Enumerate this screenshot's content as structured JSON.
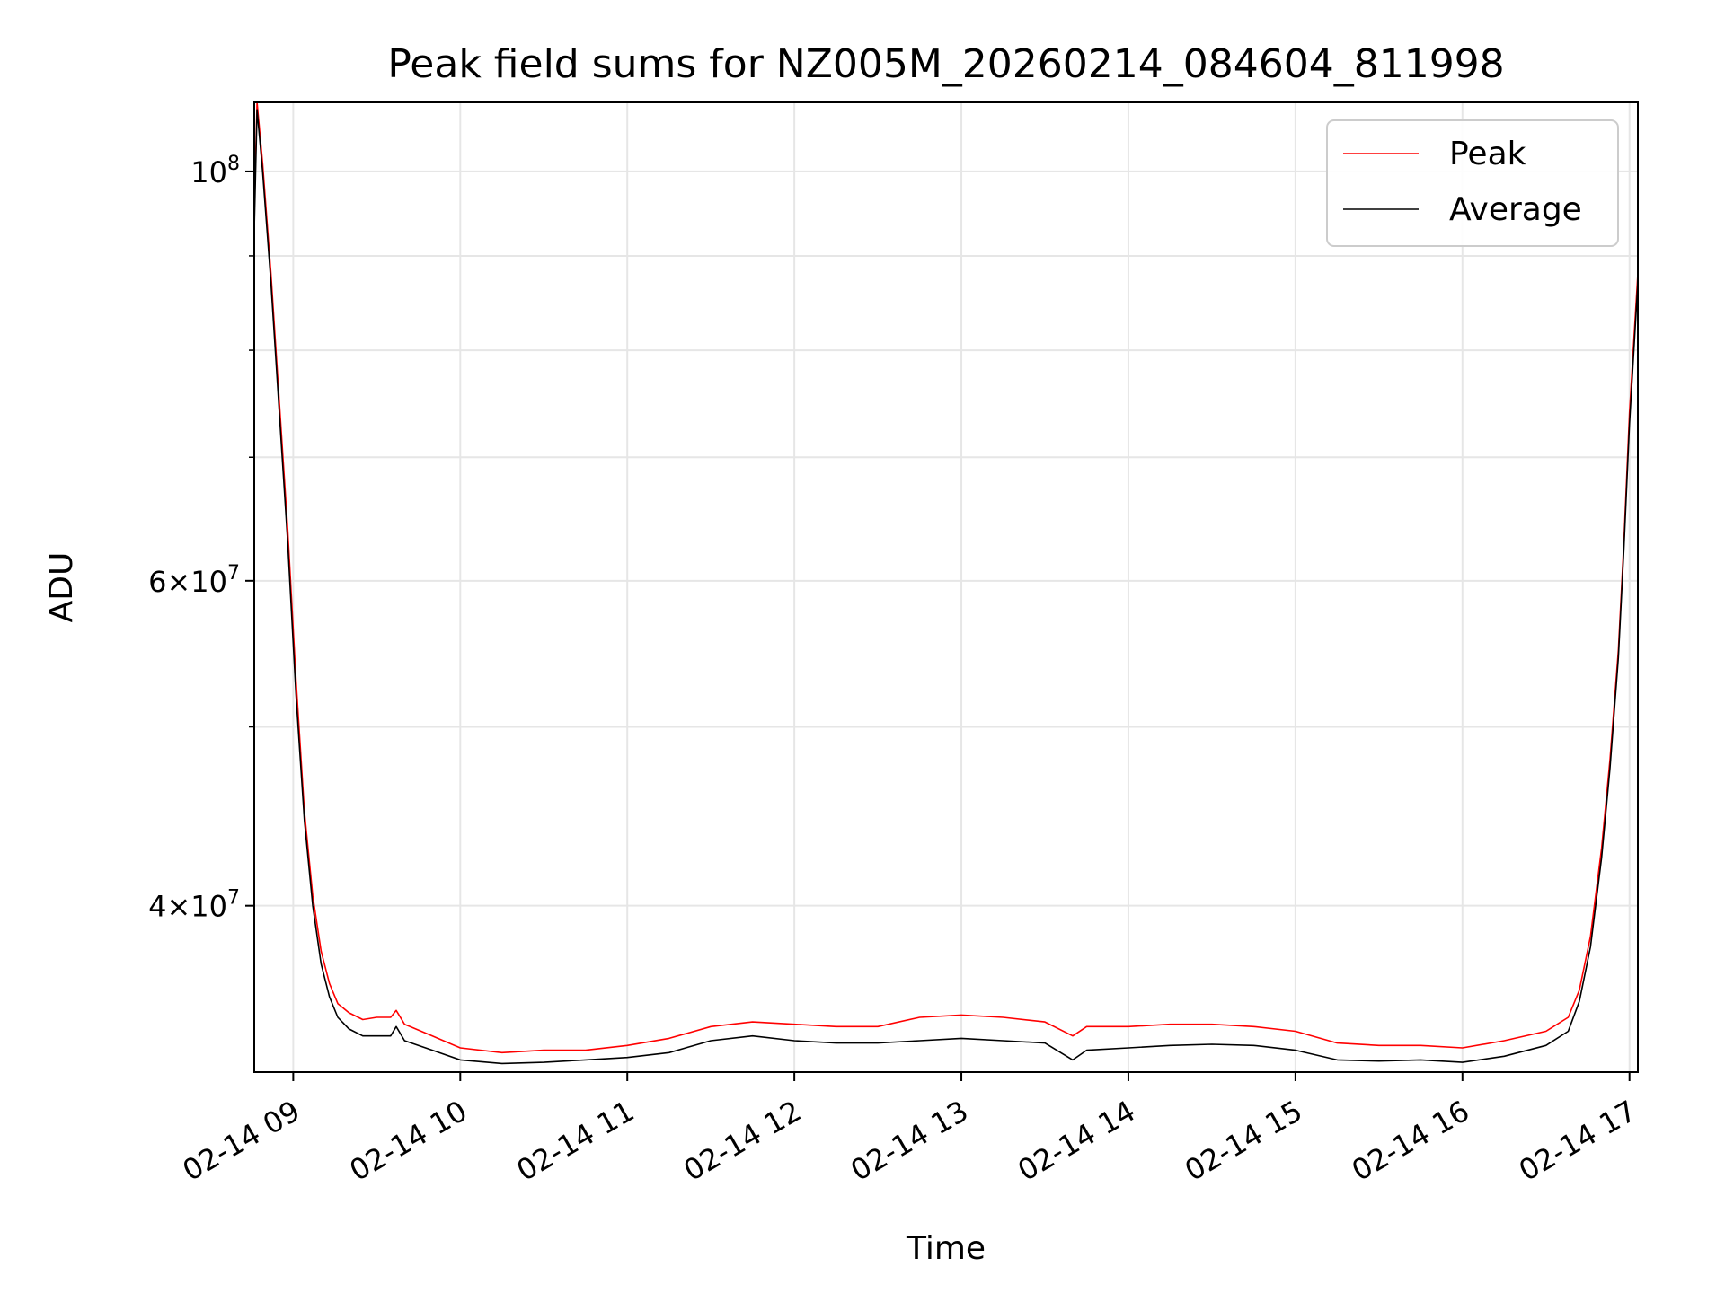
{
  "chart_data": {
    "type": "line",
    "title": "Peak field sums for NZ005M_20260214_084604_811998",
    "xlabel": "Time",
    "ylabel": "ADU",
    "y_scale": "log",
    "ylim": [
      32500000,
      109000000
    ],
    "xlim": [
      "02-14 08:46",
      "02-14 17:03"
    ],
    "grid": true,
    "legend_position": "top-right",
    "x_ticks": [
      "02-14 09",
      "02-14 10",
      "02-14 11",
      "02-14 12",
      "02-14 13",
      "02-14 14",
      "02-14 15",
      "02-14 16",
      "02-14 17"
    ],
    "y_ticks": [
      {
        "value": 100000000,
        "label": "10^8"
      },
      {
        "value": 60000000,
        "label": "6×10^7"
      },
      {
        "value": 40000000,
        "label": "4×10^7"
      }
    ],
    "y_minor_ticks": [
      30000000,
      50000000,
      70000000,
      80000000,
      90000000
    ],
    "series": [
      {
        "name": "Peak",
        "color": "#ff0000",
        "x": [
          "02-14 08:46",
          "02-14 08:47",
          "02-14 08:49",
          "02-14 08:52",
          "02-14 08:55",
          "02-14 08:58",
          "02-14 09:01",
          "02-14 09:04",
          "02-14 09:07",
          "02-14 09:10",
          "02-14 09:13",
          "02-14 09:16",
          "02-14 09:20",
          "02-14 09:25",
          "02-14 09:30",
          "02-14 09:35",
          "02-14 09:37",
          "02-14 09:40",
          "02-14 09:50",
          "02-14 10:00",
          "02-14 10:15",
          "02-14 10:30",
          "02-14 10:45",
          "02-14 11:00",
          "02-14 11:15",
          "02-14 11:30",
          "02-14 11:45",
          "02-14 12:00",
          "02-14 12:15",
          "02-14 12:30",
          "02-14 12:45",
          "02-14 13:00",
          "02-14 13:15",
          "02-14 13:30",
          "02-14 13:40",
          "02-14 13:45",
          "02-14 14:00",
          "02-14 14:15",
          "02-14 14:30",
          "02-14 14:45",
          "02-14 15:00",
          "02-14 15:15",
          "02-14 15:30",
          "02-14 15:45",
          "02-14 16:00",
          "02-14 16:15",
          "02-14 16:30",
          "02-14 16:38",
          "02-14 16:42",
          "02-14 16:46",
          "02-14 16:50",
          "02-14 16:53",
          "02-14 16:56",
          "02-14 16:58",
          "02-14 17:00",
          "02-14 17:03"
        ],
        "values": [
          95000000,
          109000000,
          101000000,
          88000000,
          75000000,
          64000000,
          53000000,
          45000000,
          40500000,
          37800000,
          36300000,
          35400000,
          35000000,
          34700000,
          34800000,
          34800000,
          35100000,
          34500000,
          34000000,
          33500000,
          33300000,
          33400000,
          33400000,
          33600000,
          33900000,
          34400000,
          34600000,
          34500000,
          34400000,
          34400000,
          34800000,
          34900000,
          34800000,
          34600000,
          34000000,
          34400000,
          34400000,
          34500000,
          34500000,
          34400000,
          34200000,
          33700000,
          33600000,
          33600000,
          33500000,
          33800000,
          34200000,
          34800000,
          36000000,
          38500000,
          43000000,
          48000000,
          55000000,
          63000000,
          74000000,
          88000000
        ]
      },
      {
        "name": "Average",
        "color": "#000000",
        "x": [
          "02-14 08:46",
          "02-14 08:47",
          "02-14 08:49",
          "02-14 08:52",
          "02-14 08:55",
          "02-14 08:58",
          "02-14 09:01",
          "02-14 09:04",
          "02-14 09:07",
          "02-14 09:10",
          "02-14 09:13",
          "02-14 09:16",
          "02-14 09:20",
          "02-14 09:25",
          "02-14 09:30",
          "02-14 09:35",
          "02-14 09:37",
          "02-14 09:40",
          "02-14 09:50",
          "02-14 10:00",
          "02-14 10:15",
          "02-14 10:30",
          "02-14 10:45",
          "02-14 11:00",
          "02-14 11:15",
          "02-14 11:30",
          "02-14 11:45",
          "02-14 12:00",
          "02-14 12:15",
          "02-14 12:30",
          "02-14 12:45",
          "02-14 13:00",
          "02-14 13:15",
          "02-14 13:30",
          "02-14 13:40",
          "02-14 13:45",
          "02-14 14:00",
          "02-14 14:15",
          "02-14 14:30",
          "02-14 14:45",
          "02-14 15:00",
          "02-14 15:15",
          "02-14 15:30",
          "02-14 15:45",
          "02-14 16:00",
          "02-14 16:15",
          "02-14 16:30",
          "02-14 16:38",
          "02-14 16:42",
          "02-14 16:46",
          "02-14 16:50",
          "02-14 16:53",
          "02-14 16:56",
          "02-14 16:58",
          "02-14 17:00",
          "02-14 17:03"
        ],
        "values": [
          93000000,
          108000000,
          100000000,
          87000000,
          74000000,
          63000000,
          52000000,
          44500000,
          40000000,
          37200000,
          35700000,
          34800000,
          34300000,
          34000000,
          34000000,
          34000000,
          34400000,
          33800000,
          33400000,
          33000000,
          32850000,
          32900000,
          33000000,
          33100000,
          33300000,
          33800000,
          34000000,
          33800000,
          33700000,
          33700000,
          33800000,
          33900000,
          33800000,
          33700000,
          33000000,
          33400000,
          33500000,
          33600000,
          33650000,
          33600000,
          33400000,
          33000000,
          32950000,
          33000000,
          32900000,
          33150000,
          33600000,
          34200000,
          35500000,
          38000000,
          42500000,
          47500000,
          54500000,
          62500000,
          73000000,
          87000000
        ]
      }
    ]
  }
}
